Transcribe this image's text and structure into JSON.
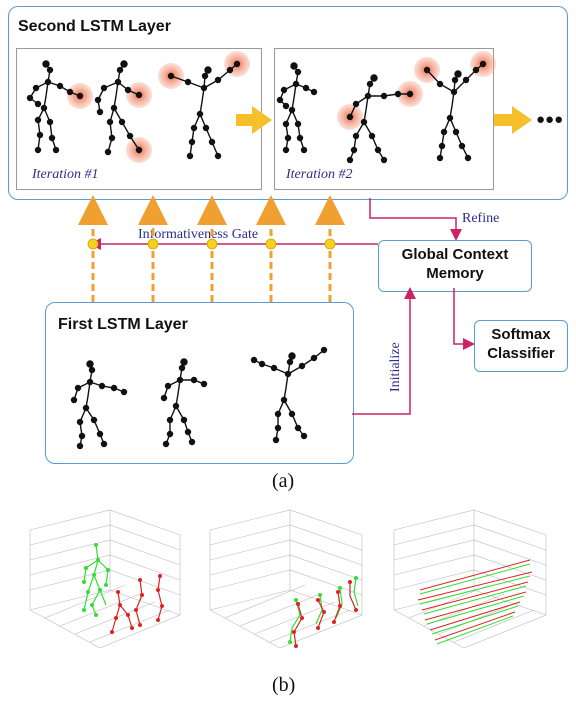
{
  "part_a": {
    "second_layer_title": "Second LSTM Layer",
    "iteration_1": "Iteration #1",
    "iteration_2": "Iteration #2",
    "ellipsis": "●●●",
    "refine_label": "Refine",
    "gate_label": "Informativeness Gate",
    "memory_label_line1": "Global Context",
    "memory_label_line2": "Memory",
    "softmax_label_line1": "Softmax",
    "softmax_label_line2": "Classifier",
    "first_layer_title": "First LSTM Layer",
    "initialize_label": "Initialize",
    "caption": "(a)"
  },
  "part_b": {
    "caption": "(b)",
    "colors": {
      "series_a": "#33dd33",
      "series_b": "#dd2222"
    }
  },
  "colors": {
    "box_border": "#5b9bd5",
    "arrow_magenta": "#cc2266",
    "arrow_orange": "#f0a030",
    "big_arrow": "#f5c02a",
    "gate_dot": "#f2d21a",
    "highlight": "#f08060"
  }
}
